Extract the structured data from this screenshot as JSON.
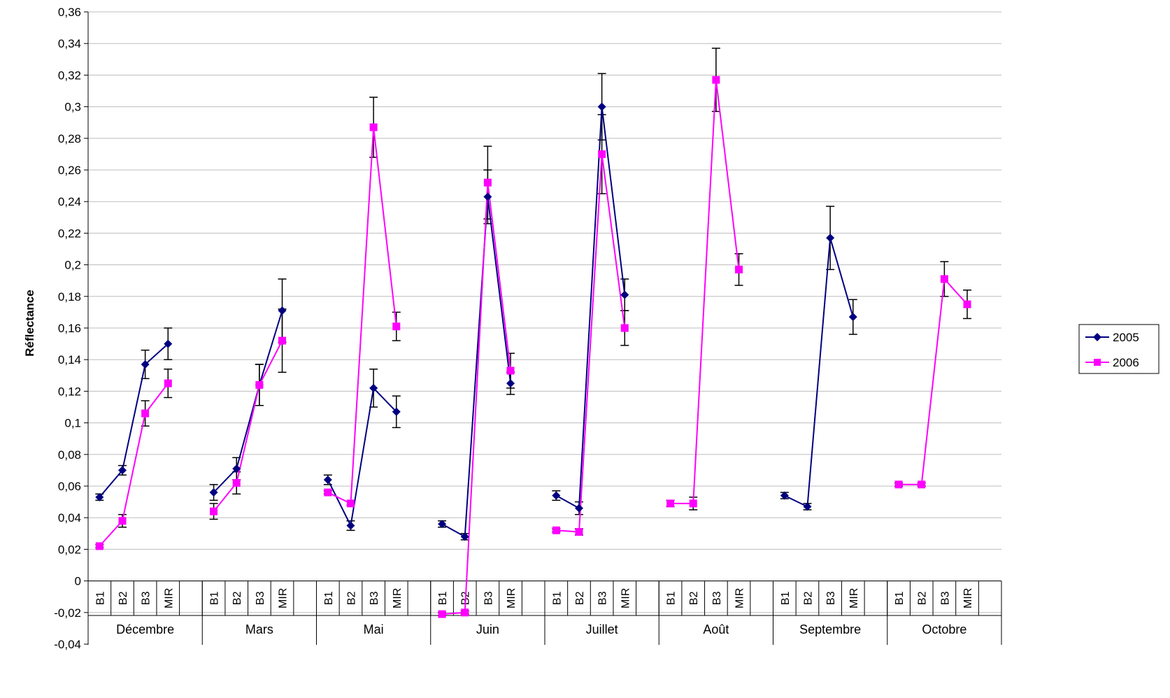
{
  "chart_data": {
    "type": "line",
    "ylabel": "Réflectance",
    "ylim": [
      -0.04,
      0.36
    ],
    "ytick_step": 0.02,
    "grid": true,
    "legend_position": "right",
    "months": [
      "Décembre",
      "Mars",
      "Mai",
      "Juin",
      "Juillet",
      "Août",
      "Septembre",
      "Octobre"
    ],
    "bands": [
      "B1",
      "B2",
      "B3",
      "MIR"
    ],
    "series": [
      {
        "name": "2005",
        "color": "#000080",
        "marker": "diamond",
        "groups": [
          {
            "values": [
              0.053,
              0.07,
              0.137,
              0.15
            ],
            "err": [
              0.002,
              0.003,
              0.009,
              0.01
            ]
          },
          {
            "values": [
              0.056,
              0.071,
              0.124,
              0.171
            ],
            "err": [
              0.005,
              0.007,
              0.013,
              0.02
            ]
          },
          {
            "values": [
              0.064,
              0.035,
              0.122,
              0.107
            ],
            "err": [
              0.003,
              0.003,
              0.012,
              0.01
            ]
          },
          {
            "values": [
              0.036,
              0.028,
              0.243,
              0.125
            ],
            "err": [
              0.002,
              0.002,
              0.017,
              0.007
            ]
          },
          {
            "values": [
              0.054,
              0.046,
              0.3,
              0.181
            ],
            "err": [
              0.003,
              0.004,
              0.021,
              0.01
            ]
          },
          {
            "values": [
              null,
              null,
              null,
              null
            ],
            "err": [
              null,
              null,
              null,
              null
            ]
          },
          {
            "values": [
              0.054,
              0.047,
              0.217,
              0.167
            ],
            "err": [
              0.002,
              0.002,
              0.02,
              0.011
            ]
          },
          {
            "values": [
              null,
              null,
              null,
              null
            ],
            "err": [
              null,
              null,
              null,
              null
            ]
          }
        ]
      },
      {
        "name": "2006",
        "color": "#ff00ff",
        "marker": "square",
        "groups": [
          {
            "values": [
              0.022,
              0.038,
              0.106,
              0.125
            ],
            "err": [
              0.001,
              0.004,
              0.008,
              0.009
            ]
          },
          {
            "values": [
              0.044,
              0.062,
              0.124,
              0.152
            ],
            "err": [
              0.005,
              0.007,
              0.013,
              0.02
            ]
          },
          {
            "values": [
              0.056,
              0.049,
              0.287,
              0.161
            ],
            "err": [
              0.001,
              0.001,
              0.019,
              0.009
            ]
          },
          {
            "values": [
              -0.021,
              -0.02,
              0.252,
              0.133
            ],
            "err": [
              0.001,
              0.001,
              0.023,
              0.011
            ]
          },
          {
            "values": [
              0.032,
              0.031,
              0.27,
              0.16
            ],
            "err": [
              0.001,
              0.002,
              0.025,
              0.011
            ]
          },
          {
            "values": [
              0.049,
              0.049,
              0.317,
              0.197
            ],
            "err": [
              0.002,
              0.004,
              0.02,
              0.01
            ]
          },
          {
            "values": [
              null,
              null,
              null,
              null
            ],
            "err": [
              null,
              null,
              null,
              null
            ]
          },
          {
            "values": [
              0.061,
              0.061,
              0.191,
              0.175
            ],
            "err": [
              0.001,
              0.001,
              0.011,
              0.009
            ]
          }
        ]
      }
    ]
  }
}
